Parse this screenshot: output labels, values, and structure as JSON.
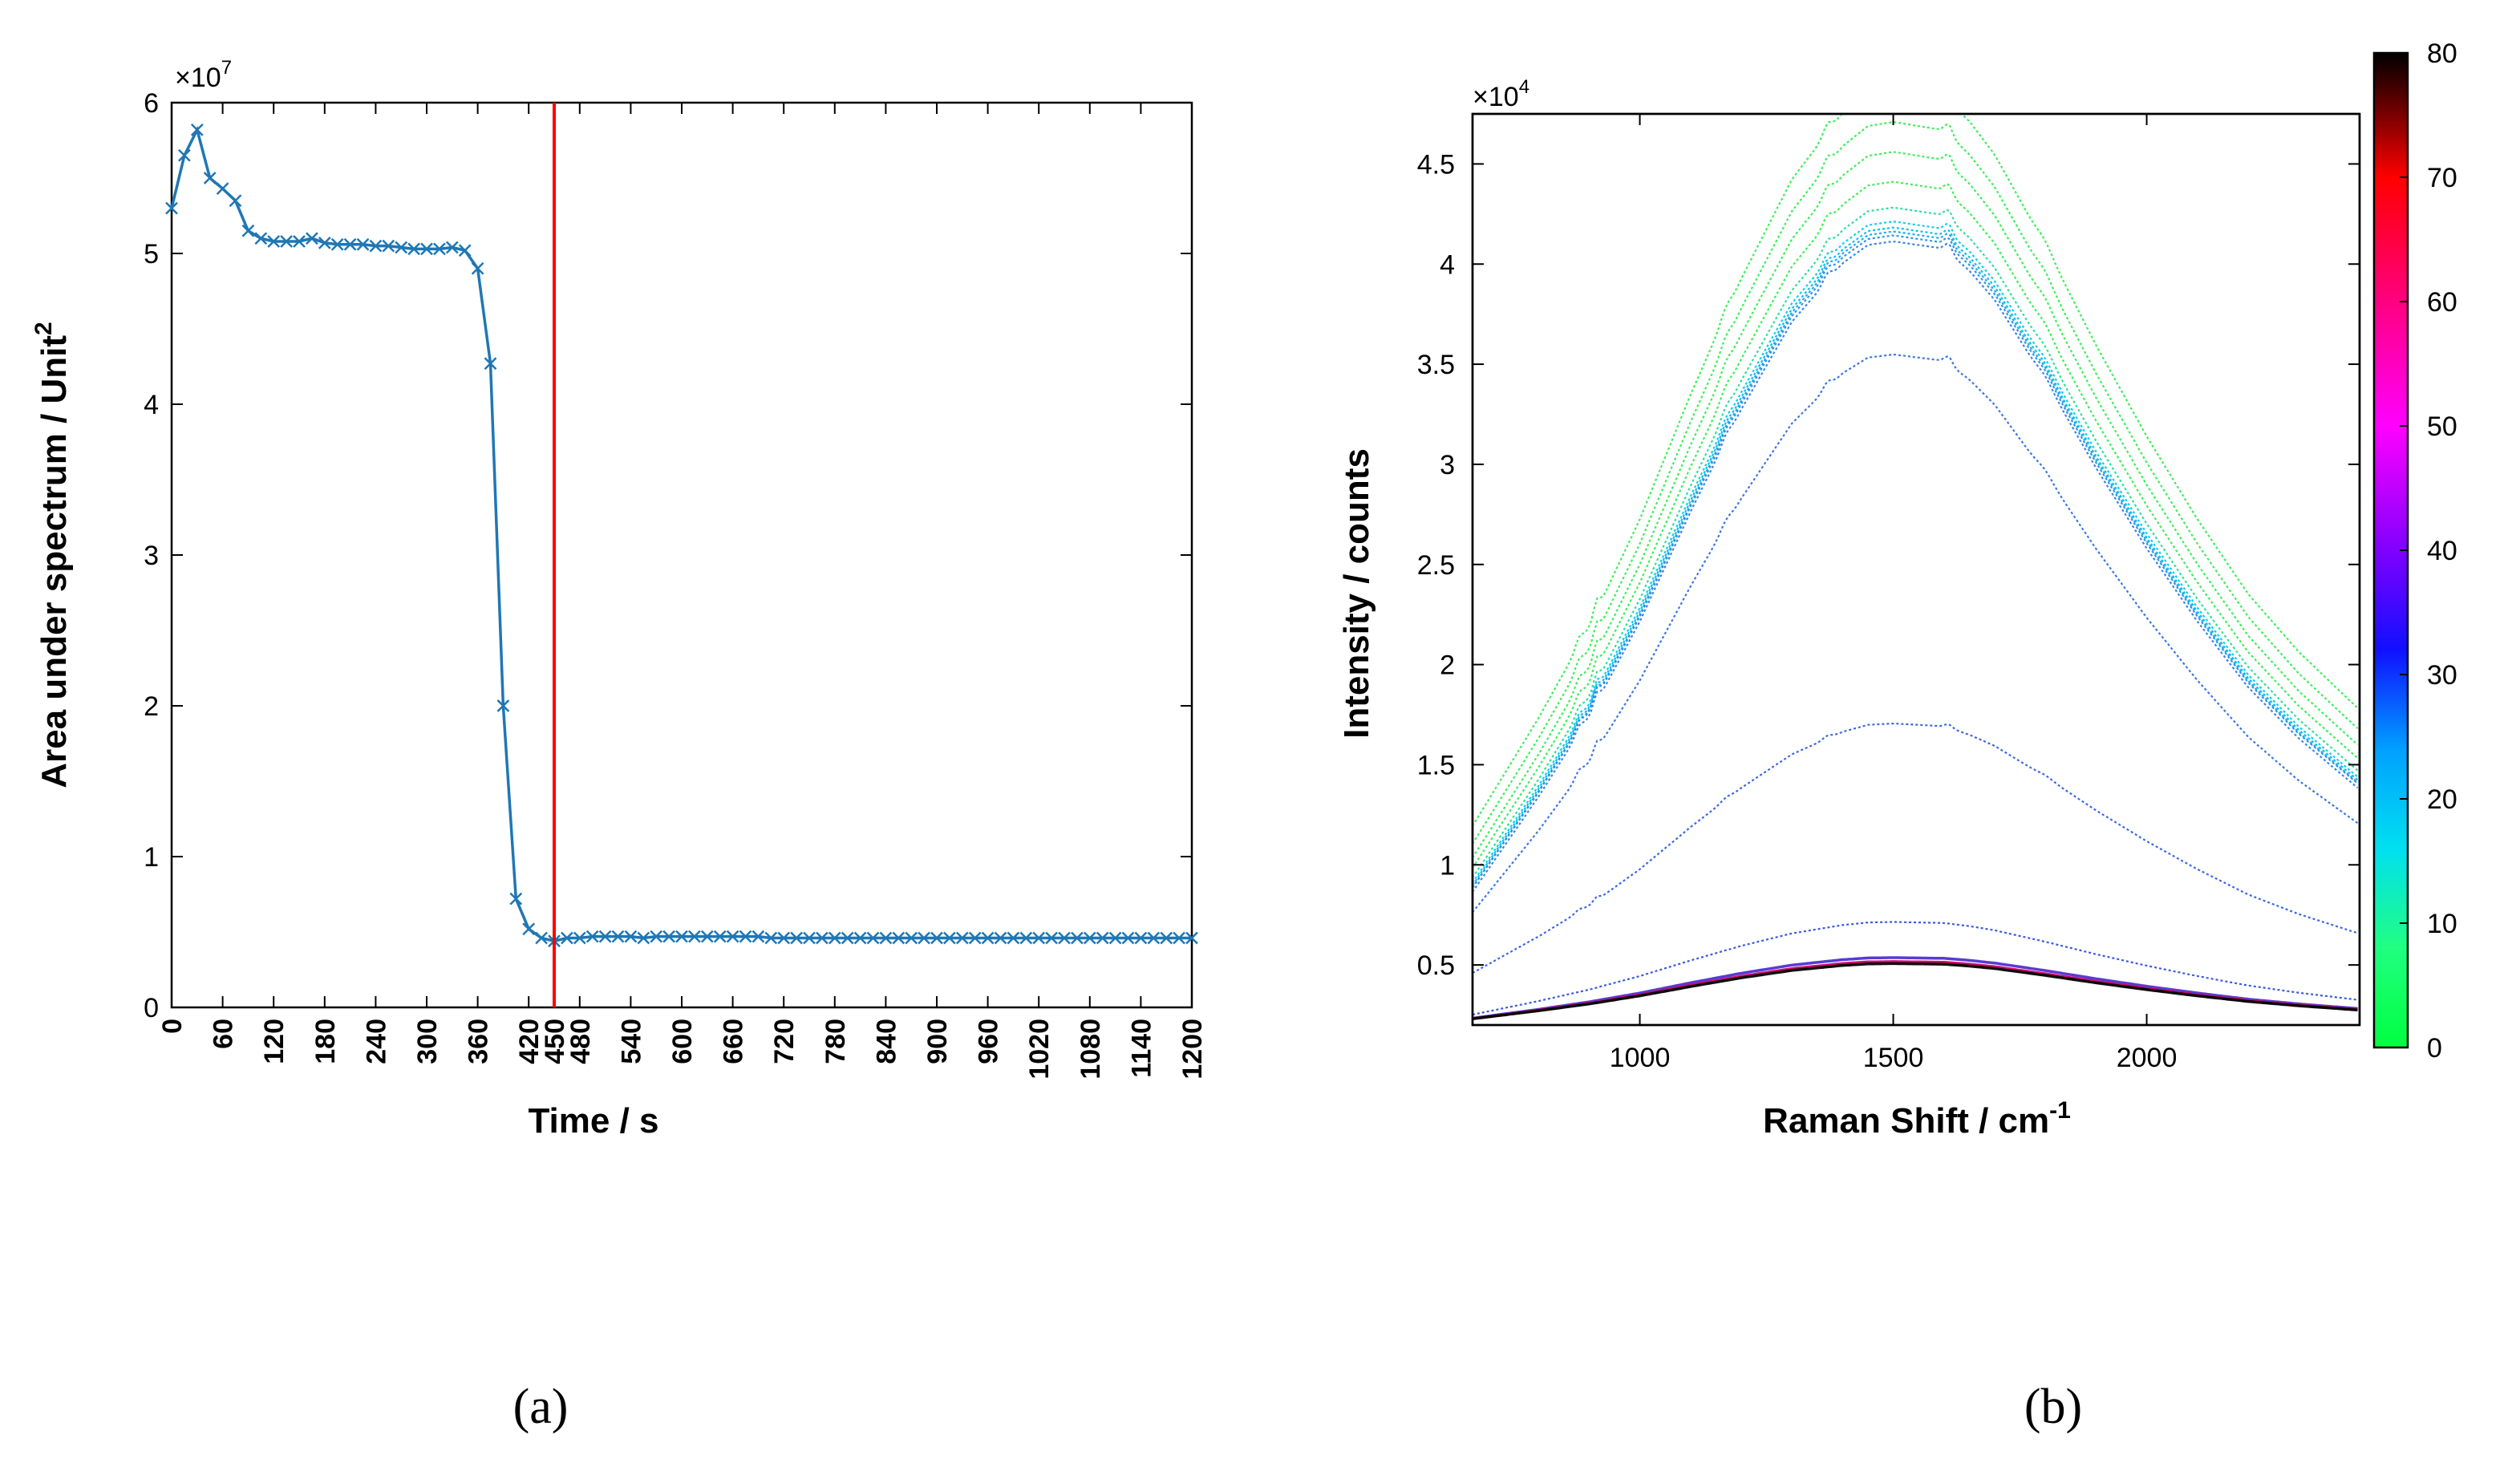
{
  "panels": {
    "a": "(a)",
    "b": "(b)"
  },
  "chart_data": [
    {
      "type": "line",
      "panel": "(a)",
      "xlabel": "Time / s",
      "ylabel": "Area under spectrum / Unit",
      "ylabel_sup": "2",
      "y_exponent_base": "×10",
      "y_exponent_power": "7",
      "xlim": [
        0,
        1200
      ],
      "ylim": [
        0,
        6
      ],
      "xticks": [
        "0",
        "60",
        "120",
        "180",
        "240",
        "300",
        "360",
        "420",
        "450",
        "480",
        "540",
        "600",
        "660",
        "720",
        "780",
        "840",
        "900",
        "960",
        "1020",
        "1080",
        "1140",
        "1200"
      ],
      "xtick_values": [
        0,
        60,
        120,
        180,
        240,
        300,
        360,
        420,
        450,
        480,
        540,
        600,
        660,
        720,
        780,
        840,
        900,
        960,
        1020,
        1080,
        1140,
        1200
      ],
      "yticks": [
        "0",
        "1",
        "2",
        "3",
        "4",
        "5",
        "6"
      ],
      "ytick_values": [
        0,
        1,
        2,
        3,
        4,
        5,
        6
      ],
      "series_color": "#1f77b4",
      "marker": "x",
      "x": [
        0,
        15,
        30,
        45,
        60,
        75,
        90,
        105,
        120,
        135,
        150,
        165,
        180,
        195,
        210,
        225,
        240,
        255,
        270,
        285,
        300,
        315,
        330,
        345,
        360,
        375,
        390,
        405,
        420,
        435,
        450,
        465,
        480,
        495,
        510,
        525,
        540,
        555,
        570,
        585,
        600,
        615,
        630,
        645,
        660,
        675,
        690,
        705,
        720,
        735,
        750,
        765,
        780,
        795,
        810,
        825,
        840,
        855,
        870,
        885,
        900,
        915,
        930,
        945,
        960,
        975,
        990,
        1005,
        1020,
        1035,
        1050,
        1065,
        1080,
        1095,
        1110,
        1125,
        1140,
        1155,
        1170,
        1185,
        1200
      ],
      "y": [
        5.3,
        5.65,
        5.82,
        5.5,
        5.43,
        5.35,
        5.15,
        5.1,
        5.08,
        5.08,
        5.08,
        5.1,
        5.07,
        5.06,
        5.06,
        5.06,
        5.05,
        5.05,
        5.04,
        5.03,
        5.03,
        5.03,
        5.04,
        5.02,
        4.9,
        4.27,
        2.0,
        0.72,
        0.52,
        0.46,
        0.44,
        0.46,
        0.46,
        0.47,
        0.47,
        0.47,
        0.47,
        0.46,
        0.47,
        0.47,
        0.47,
        0.47,
        0.47,
        0.47,
        0.47,
        0.47,
        0.47,
        0.46,
        0.46,
        0.46,
        0.46,
        0.46,
        0.46,
        0.46,
        0.46,
        0.46,
        0.46,
        0.46,
        0.46,
        0.46,
        0.46,
        0.46,
        0.46,
        0.46,
        0.46,
        0.46,
        0.46,
        0.46,
        0.46,
        0.46,
        0.46,
        0.46,
        0.46,
        0.46,
        0.46,
        0.46,
        0.46,
        0.46,
        0.46,
        0.46,
        0.46
      ],
      "vertical_line": {
        "x": 450,
        "color": "#ff0000"
      }
    },
    {
      "type": "line",
      "panel": "(b)",
      "xlabel": "Raman Shift / cm",
      "xlabel_sup": "-1",
      "ylabel": "Intensity / counts",
      "y_exponent_base": "×10",
      "y_exponent_power": "4",
      "xlim": [
        670,
        2420
      ],
      "ylim": [
        0.2,
        4.75
      ],
      "xticks": [
        "1000",
        "1500",
        "2000"
      ],
      "xtick_values": [
        1000,
        1500,
        2000
      ],
      "yticks": [
        "0.5",
        "1",
        "1.5",
        "2",
        "2.5",
        "3",
        "3.5",
        "4",
        "4.5"
      ],
      "ytick_values": [
        0.5,
        1,
        1.5,
        2,
        2.5,
        3,
        3.5,
        4,
        4.5
      ],
      "colorbar": {
        "range": [
          0,
          80
        ],
        "ticks": [
          "0",
          "10",
          "20",
          "30",
          "40",
          "50",
          "60",
          "70",
          "80"
        ],
        "tick_values": [
          0,
          10,
          20,
          30,
          40,
          50,
          60,
          70,
          80
        ],
        "stops": [
          {
            "v": 0,
            "color": "#00ff40"
          },
          {
            "v": 8,
            "color": "#20ff80"
          },
          {
            "v": 16,
            "color": "#00e0f0"
          },
          {
            "v": 24,
            "color": "#00a0ff"
          },
          {
            "v": 32,
            "color": "#1010ff"
          },
          {
            "v": 40,
            "color": "#8000ff"
          },
          {
            "v": 50,
            "color": "#ff00ff"
          },
          {
            "v": 60,
            "color": "#ff0080"
          },
          {
            "v": 70,
            "color": "#ff0000"
          },
          {
            "v": 76,
            "color": "#600000"
          },
          {
            "v": 80,
            "color": "#000000"
          }
        ]
      },
      "spectrum_shape": {
        "x": [
          670,
          800,
          900,
          1000,
          1100,
          1200,
          1300,
          1400,
          1450,
          1500,
          1550,
          1600,
          1650,
          1700,
          1800,
          1900,
          2000,
          2100,
          2200,
          2300,
          2420
        ],
        "y": [
          0.1,
          0.23,
          0.34,
          0.47,
          0.62,
          0.76,
          0.88,
          0.96,
          0.985,
          0.99,
          0.985,
          0.98,
          0.95,
          0.91,
          0.8,
          0.68,
          0.57,
          0.47,
          0.38,
          0.31,
          0.24
        ]
      },
      "spectra": [
        {
          "time": 2,
          "baseline": 0.58,
          "peak": 4.72,
          "color": "#30ee50"
        },
        {
          "time": 4,
          "baseline": 0.5,
          "peak": 4.55,
          "color": "#30ee50"
        },
        {
          "time": 6,
          "baseline": 0.44,
          "peak": 4.4,
          "color": "#30ee50"
        },
        {
          "time": 8,
          "baseline": 0.4,
          "peak": 4.25,
          "color": "#30ee50"
        },
        {
          "time": 10,
          "baseline": 0.36,
          "peak": 4.12,
          "color": "#22dd99"
        },
        {
          "time": 14,
          "baseline": 0.34,
          "peak": 4.05,
          "color": "#00ccee"
        },
        {
          "time": 16,
          "baseline": 0.33,
          "peak": 4.02,
          "color": "#00bbf0"
        },
        {
          "time": 18,
          "baseline": 0.32,
          "peak": 4.0,
          "color": "#10a8f0"
        },
        {
          "time": 20,
          "baseline": 0.32,
          "peak": 3.98,
          "color": "#2090e8"
        },
        {
          "time": 24,
          "baseline": 0.3,
          "peak": 3.95,
          "color": "#3080e0"
        },
        {
          "time": 26,
          "baseline": 0.25,
          "peak": 3.38,
          "color": "#3070e0"
        },
        {
          "time": 28,
          "baseline": 0.12,
          "peak": 1.52,
          "color": "#3060e0"
        },
        {
          "time": 30,
          "baseline": 0.0,
          "peak": 0.52,
          "color": "#3050e0"
        },
        {
          "time": 40,
          "baseline": 0.0,
          "peak": 0.34,
          "color": "#5030d0"
        },
        {
          "time": 60,
          "baseline": 0.0,
          "peak": 0.32,
          "color": "#cc0066"
        },
        {
          "time": 80,
          "baseline": 0.0,
          "peak": 0.31,
          "color": "#000000"
        }
      ],
      "spectrum_offset": 0.2
    }
  ]
}
